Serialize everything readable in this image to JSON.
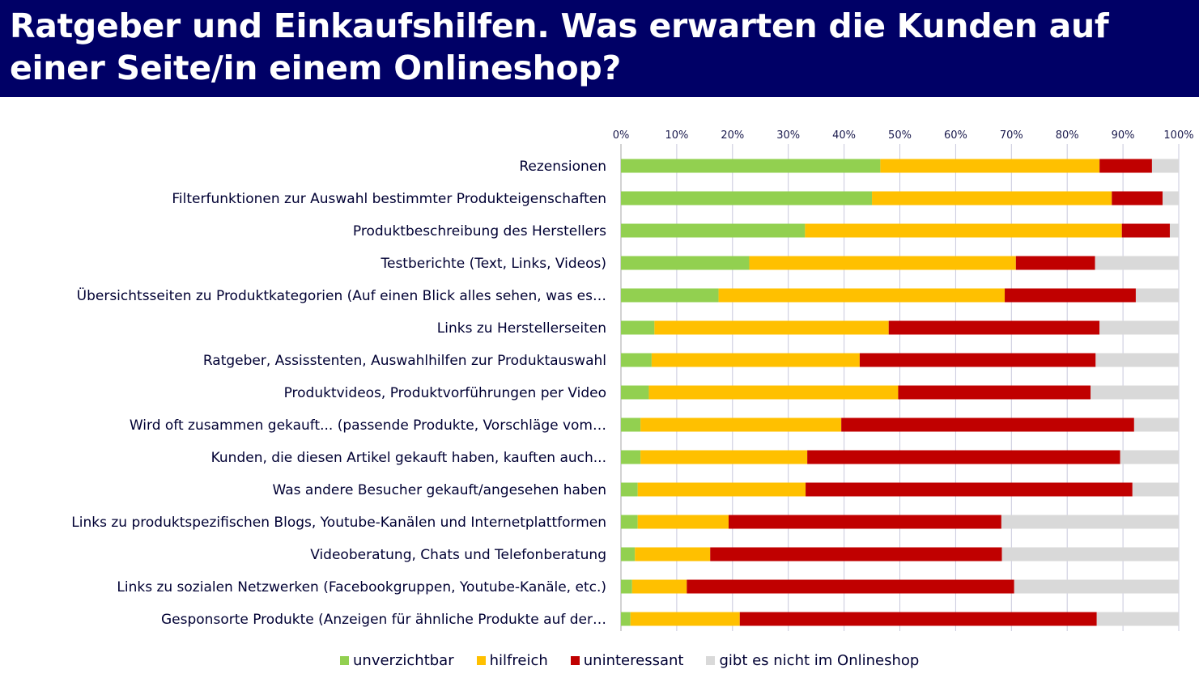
{
  "header": {
    "title": "Ratgeber und Einkaufshilfen. Was erwarten die Kunden auf einer Seite/in einem Onlineshop?"
  },
  "colors": {
    "unverzichtbar": "#92d050",
    "hilfreich": "#ffc000",
    "uninteressant": "#c00000",
    "gibt_es_nicht": "#d9d9d9",
    "title_bg": "#000066"
  },
  "chart_data": {
    "type": "bar",
    "orientation": "horizontal",
    "stacked": true,
    "xlim": [
      0,
      100
    ],
    "x_ticks": [
      "0%",
      "10%",
      "20%",
      "30%",
      "40%",
      "50%",
      "60%",
      "70%",
      "80%",
      "90%",
      "100%"
    ],
    "grid": true,
    "legend_position": "bottom",
    "categories": [
      "Rezensionen",
      "Filterfunktionen zur Auswahl bestimmter Produkteigenschaften",
      "Produktbeschreibung des Herstellers",
      "Testberichte (Text, Links, Videos)",
      "Übersichtsseiten zu Produktkategorien (Auf einen Blick alles sehen, was es…",
      "Links zu Herstellerseiten",
      "Ratgeber, Assisstenten, Auswahlhilfen zur Produktauswahl",
      "Produktvideos, Produktvorführungen per Video",
      "Wird oft zusammen gekauft... (passende Produkte, Vorschläge vom…",
      "Kunden, die diesen Artikel gekauft haben, kauften auch...",
      "Was andere Besucher gekauft/angesehen haben",
      "Links zu produktspezifischen Blogs, Youtube-Kanälen und Internetplattformen",
      "Videoberatung, Chats und Telefonberatung",
      "Links zu sozialen Netzwerken (Facebookgruppen, Youtube-Kanäle, etc.)",
      "Gesponsorte Produkte (Anzeigen für ähnliche Produkte auf der…"
    ],
    "series": [
      {
        "name": "unverzichtbar",
        "values": [
          46.5,
          45,
          33,
          23,
          17.5,
          6,
          5.5,
          5,
          3.5,
          3.5,
          3,
          3,
          2.5,
          2,
          1.7
        ]
      },
      {
        "name": "hilfreich",
        "values": [
          39.3,
          43,
          56.8,
          47.8,
          51.3,
          42,
          37.3,
          44.7,
          36,
          29.9,
          30.1,
          16.3,
          13.5,
          9.8,
          19.6
        ]
      },
      {
        "name": "uninteressant",
        "values": [
          9.4,
          9.1,
          8.6,
          14.2,
          23.5,
          37.8,
          42.3,
          34.5,
          52.5,
          56.1,
          58.6,
          48.9,
          52.3,
          58.7,
          64
        ]
      },
      {
        "name": "gibt es nicht im Onlineshop",
        "values": [
          4.8,
          2.9,
          1.6,
          15,
          7.7,
          14.2,
          14.9,
          15.8,
          8,
          10.5,
          8.3,
          31.8,
          31.7,
          29.5,
          14.7
        ]
      }
    ]
  }
}
